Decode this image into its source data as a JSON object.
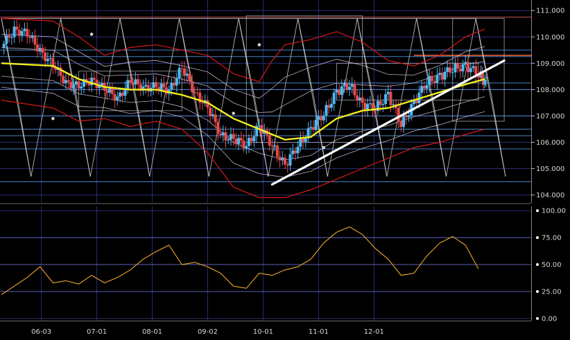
{
  "chart_data": [
    {
      "type": "candlestick",
      "panel": "price",
      "x_tick_labels": [
        "06-03",
        "07-01",
        "08-01",
        "09-02",
        "10-01",
        "11-01",
        "12-01"
      ],
      "y_tick_labels": [
        "104.000",
        "105.000",
        "106.000",
        "107.000",
        "108.000",
        "109.000",
        "110.000",
        "111.000"
      ],
      "ylim": [
        103.7,
        111.4
      ],
      "grid": true,
      "colors": {
        "up": "#4fb8f0",
        "down": "#e84a4a",
        "moving_average": "#f2ee20",
        "bands": "#d81a1a",
        "trendline": "#ffffff",
        "geometry": "#cfcfcf",
        "levels": "#5a9ff0",
        "resistance": "#f36a3a"
      },
      "close_path": [
        [
          0,
          109.6
        ],
        [
          0.5,
          110.3
        ],
        [
          1,
          110.1
        ],
        [
          1.5,
          109.5
        ],
        [
          2,
          108.9
        ],
        [
          2.5,
          108.3
        ],
        [
          3,
          108.1
        ],
        [
          3.5,
          108.4
        ],
        [
          4,
          108.0
        ],
        [
          4.5,
          107.7
        ],
        [
          5,
          108.3
        ],
        [
          5.5,
          108.1
        ],
        [
          6,
          108.1
        ],
        [
          6.5,
          108.0
        ],
        [
          7,
          108.8
        ],
        [
          7.5,
          107.9
        ],
        [
          8,
          107.3
        ],
        [
          8.5,
          106.3
        ],
        [
          9,
          106.1
        ],
        [
          9.5,
          105.9
        ],
        [
          10,
          106.6
        ],
        [
          10.5,
          105.9
        ],
        [
          11,
          105.1
        ],
        [
          11.5,
          105.9
        ],
        [
          12,
          106.5
        ],
        [
          12.5,
          107.1
        ],
        [
          13,
          107.9
        ],
        [
          13.5,
          108.2
        ],
        [
          14,
          107.4
        ],
        [
          14.5,
          107.3
        ],
        [
          15,
          107.8
        ],
        [
          15.5,
          106.7
        ],
        [
          16,
          107.5
        ],
        [
          16.5,
          108.3
        ],
        [
          17,
          108.5
        ],
        [
          17.5,
          108.8
        ],
        [
          18,
          108.9
        ],
        [
          18.5,
          108.6
        ],
        [
          18.75,
          108.2
        ]
      ],
      "moving_average": [
        [
          0,
          109.0
        ],
        [
          2,
          108.9
        ],
        [
          3,
          108.4
        ],
        [
          4,
          108.1
        ],
        [
          5,
          108.0
        ],
        [
          6,
          108.0
        ],
        [
          7,
          107.8
        ],
        [
          8,
          107.5
        ],
        [
          9,
          106.9
        ],
        [
          10,
          106.5
        ],
        [
          11,
          106.1
        ],
        [
          12,
          106.2
        ],
        [
          13,
          106.9
        ],
        [
          14,
          107.2
        ],
        [
          15,
          107.3
        ],
        [
          16,
          107.6
        ],
        [
          17,
          107.9
        ],
        [
          18,
          108.2
        ],
        [
          18.75,
          108.4
        ]
      ],
      "upper_band": [
        [
          0,
          110.7
        ],
        [
          2,
          110.6
        ],
        [
          3,
          110.0
        ],
        [
          4,
          109.3
        ],
        [
          5,
          109.6
        ],
        [
          6,
          109.7
        ],
        [
          7,
          109.5
        ],
        [
          8,
          109.3
        ],
        [
          9,
          108.6
        ],
        [
          10,
          108.3
        ],
        [
          10.5,
          109.1
        ],
        [
          11,
          109.7
        ],
        [
          12,
          109.9
        ],
        [
          13,
          110.2
        ],
        [
          14,
          109.8
        ],
        [
          15,
          109.1
        ],
        [
          16,
          108.9
        ],
        [
          17,
          109.3
        ],
        [
          18,
          110.0
        ],
        [
          18.75,
          110.3
        ]
      ],
      "lower_band": [
        [
          0,
          107.6
        ],
        [
          2,
          107.3
        ],
        [
          3,
          106.8
        ],
        [
          4,
          106.9
        ],
        [
          5,
          106.6
        ],
        [
          6,
          106.8
        ],
        [
          7,
          106.5
        ],
        [
          8,
          105.6
        ],
        [
          9,
          104.3
        ],
        [
          10,
          103.9
        ],
        [
          11,
          103.9
        ],
        [
          12,
          104.2
        ],
        [
          13,
          104.6
        ],
        [
          14,
          105.0
        ],
        [
          15,
          105.4
        ],
        [
          16,
          105.8
        ],
        [
          17,
          106.0
        ],
        [
          18,
          106.3
        ],
        [
          18.75,
          106.5
        ]
      ],
      "trendline": [
        [
          10.5,
          104.4
        ],
        [
          19.5,
          109.1
        ]
      ],
      "horizontal_levels": [
        104.5,
        105.75,
        106.25,
        106.5,
        107.0,
        108.0,
        108.25,
        109.25,
        109.5,
        110.75
      ],
      "highlighted_level": 109.3,
      "markers": [
        [
          3.5,
          110.1
        ],
        [
          10,
          109.7
        ],
        [
          9,
          107.1
        ],
        [
          2,
          106.9
        ],
        [
          12.5,
          105.8
        ]
      ]
    },
    {
      "type": "line",
      "panel": "oscillator",
      "y_tick_labels": [
        "0.00",
        "25.00",
        "50.00",
        "75.00",
        "100.00"
      ],
      "ylim": [
        -2,
        104
      ],
      "levels": [
        25,
        50,
        75
      ],
      "grid": true,
      "color": "#f0a828",
      "values": [
        [
          0,
          22
        ],
        [
          0.5,
          30
        ],
        [
          1,
          38
        ],
        [
          1.5,
          48
        ],
        [
          2,
          33
        ],
        [
          2.5,
          35
        ],
        [
          3,
          32
        ],
        [
          3.5,
          40
        ],
        [
          4,
          33
        ],
        [
          4.5,
          38
        ],
        [
          5,
          45
        ],
        [
          5.5,
          55
        ],
        [
          6,
          62
        ],
        [
          6.5,
          68
        ],
        [
          7,
          50
        ],
        [
          7.5,
          52
        ],
        [
          8,
          48
        ],
        [
          8.5,
          42
        ],
        [
          9,
          30
        ],
        [
          9.5,
          28
        ],
        [
          10,
          42
        ],
        [
          10.5,
          40
        ],
        [
          11,
          45
        ],
        [
          11.5,
          48
        ],
        [
          12,
          55
        ],
        [
          12.5,
          70
        ],
        [
          13,
          80
        ],
        [
          13.5,
          85
        ],
        [
          14,
          78
        ],
        [
          14.5,
          65
        ],
        [
          15,
          55
        ],
        [
          15.5,
          40
        ],
        [
          16,
          42
        ],
        [
          16.5,
          58
        ],
        [
          17,
          70
        ],
        [
          17.5,
          76
        ],
        [
          18,
          68
        ],
        [
          18.5,
          46
        ]
      ]
    }
  ]
}
